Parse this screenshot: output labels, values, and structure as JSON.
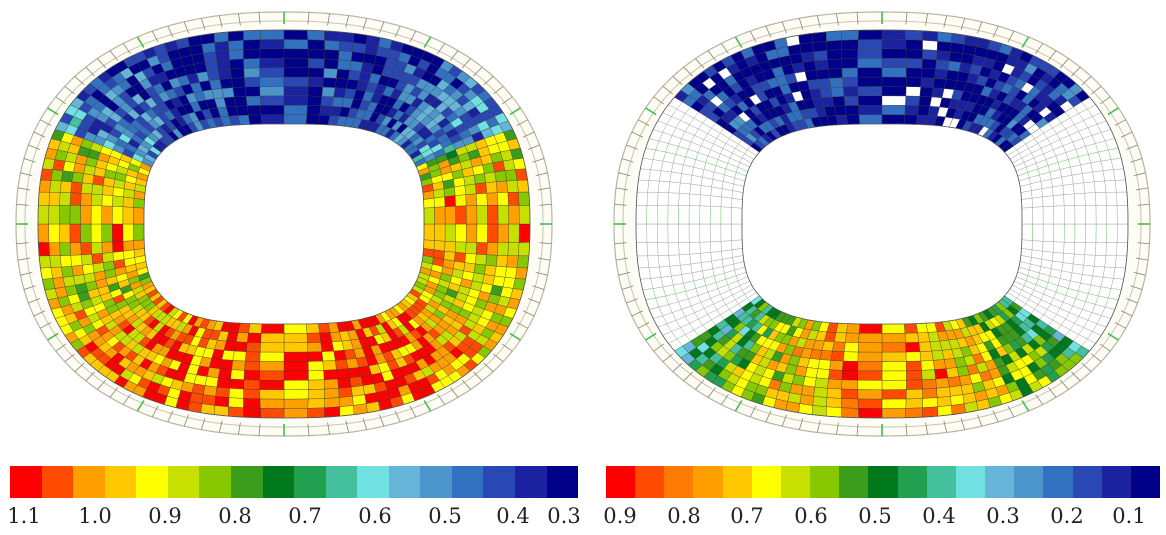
{
  "left_panel": {
    "legend": {
      "colors": [
        "#ff0000",
        "#ff4a00",
        "#ffa000",
        "#ffc800",
        "#ffff00",
        "#c8e000",
        "#88c800",
        "#3c9c1c",
        "#00781c",
        "#22a050",
        "#44c09c",
        "#70e0e0",
        "#66b4d8",
        "#4c94cc",
        "#3270c0",
        "#2a48b4",
        "#1a22a0",
        "#000088"
      ],
      "tick_labels": [
        "1.1",
        "1.0",
        "0.9",
        "0.8",
        "0.7",
        "0.6",
        "0.5",
        "0.4",
        "0.3"
      ]
    }
  },
  "right_panel": {
    "legend": {
      "colors": [
        "#ff0000",
        "#ff4a00",
        "#ff7a00",
        "#ffa000",
        "#ffc800",
        "#ffff00",
        "#c8e000",
        "#88c800",
        "#3c9c1c",
        "#00781c",
        "#22a050",
        "#44c09c",
        "#70e0e0",
        "#66b4d8",
        "#4c94cc",
        "#3270c0",
        "#2a48b4",
        "#1a22a0",
        "#000088"
      ],
      "tick_labels": [
        "0.9",
        "0.8",
        "0.7",
        "0.6",
        "0.5",
        "0.4",
        "0.3",
        "0.2",
        "0.1"
      ]
    }
  }
}
